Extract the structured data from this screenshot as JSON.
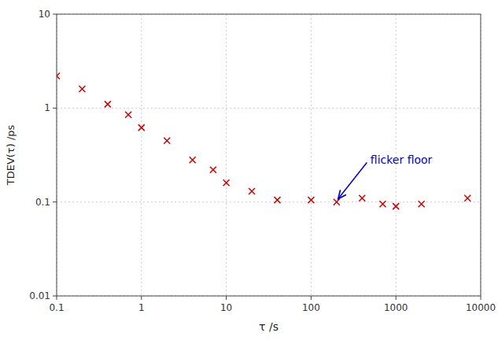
{
  "chart_data": {
    "type": "scatter",
    "x": [
      0.1,
      0.2,
      0.4,
      0.7,
      1.0,
      2.0,
      4.0,
      7.0,
      10.0,
      20.0,
      40.0,
      100.0,
      200.0,
      400.0,
      700.0,
      1000.0,
      2000.0,
      7000.0
    ],
    "values": [
      2.2,
      1.6,
      1.1,
      0.85,
      0.62,
      0.45,
      0.28,
      0.22,
      0.16,
      0.13,
      0.105,
      0.105,
      0.1,
      0.11,
      0.095,
      0.09,
      0.095,
      0.11
    ],
    "marker": "x",
    "color": "#cc0000",
    "xlabel": "τ /s",
    "ylabel": "TDEV(τ) /ps",
    "xlim": [
      0.1,
      10000
    ],
    "ylim": [
      0.01,
      10
    ],
    "xticks": [
      0.1,
      1,
      10,
      100,
      1000,
      10000
    ],
    "yticks": [
      0.01,
      0.1,
      1,
      10
    ],
    "log": true,
    "grid": true,
    "annotations": [
      {
        "text": "flicker floor",
        "x": 200.0,
        "y": 0.103,
        "text_x": 480.0,
        "text_y": 0.28,
        "color": "#0000cc"
      }
    ]
  }
}
